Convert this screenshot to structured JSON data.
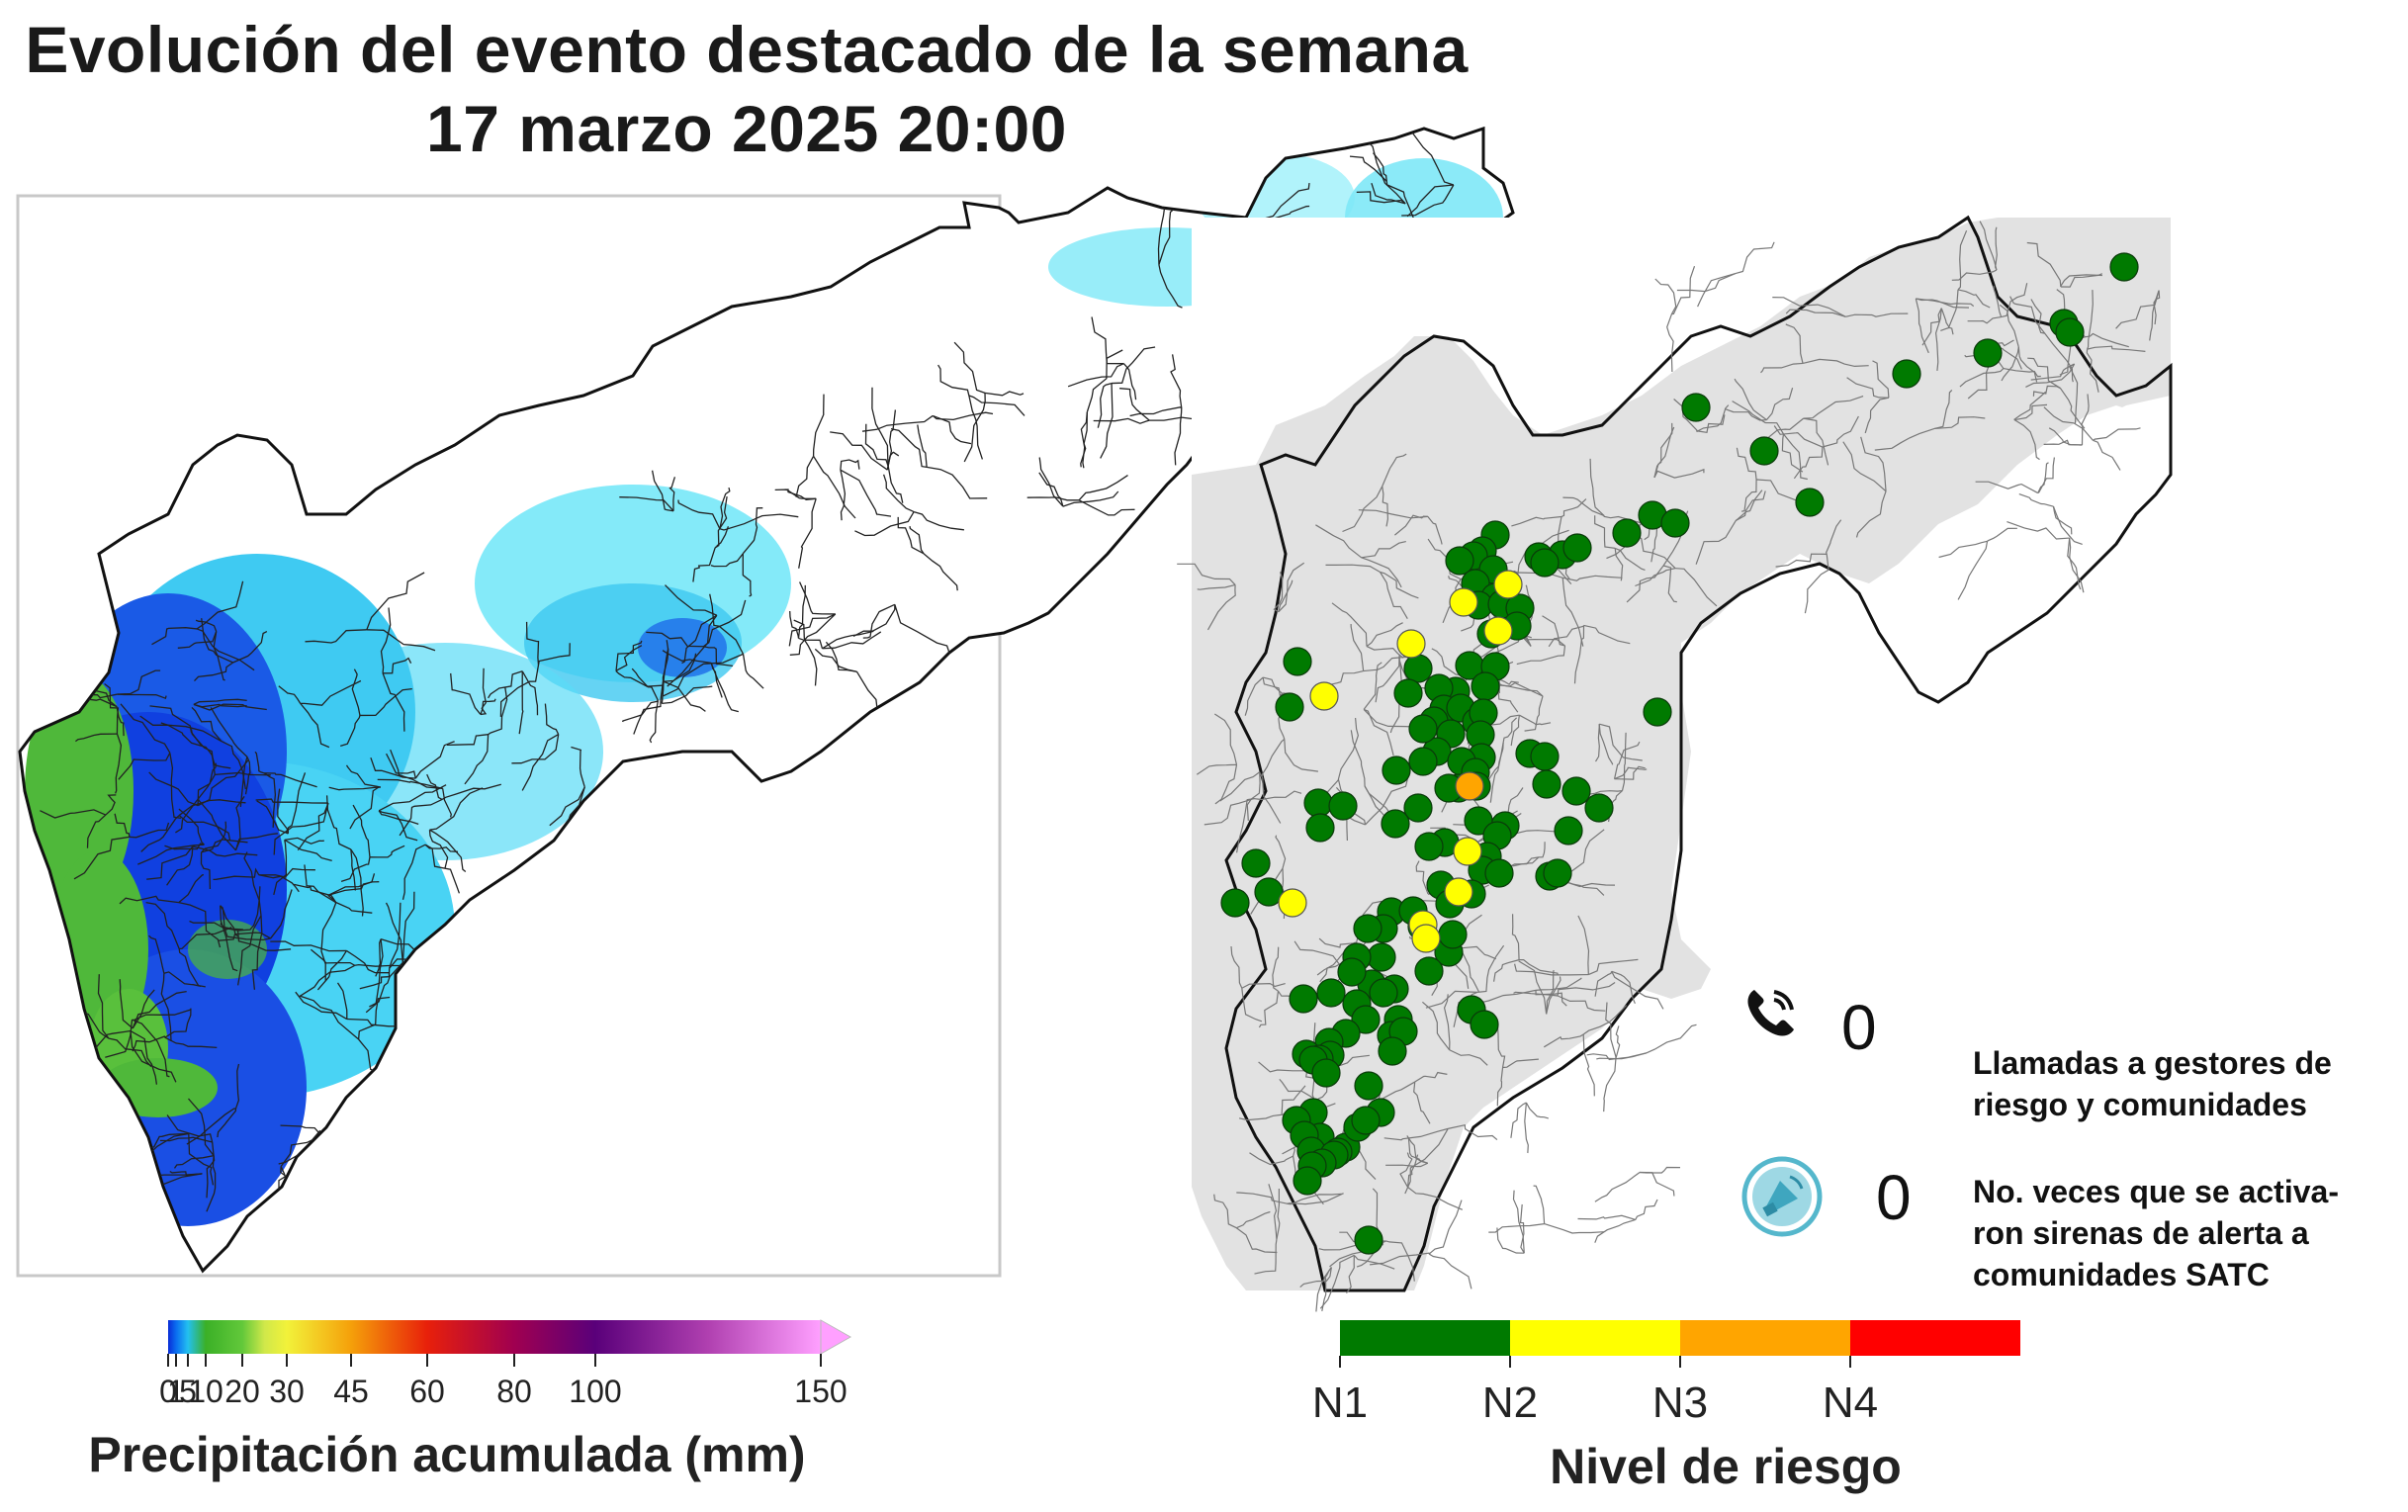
{
  "header": {
    "title": "Evolución del evento destacado de la semana",
    "subtitle": "17 marzo 2025 20:00"
  },
  "precip_legend": {
    "title": "Precipitación acumulada (mm)",
    "ticks": [
      "0",
      "1",
      "5",
      "10",
      "20",
      "30",
      "45",
      "60",
      "80",
      "100",
      "150"
    ],
    "colors": [
      "#0a2dd6",
      "#0a6cf0",
      "#23c0f0",
      "#3bb027",
      "#62c83a",
      "#f2f23a",
      "#f5a00a",
      "#e8200a",
      "#a00050",
      "#5a007a",
      "#b040b0",
      "#ffa0ff"
    ]
  },
  "risk_legend": {
    "title": "Nivel de riesgo",
    "levels": [
      {
        "label": "N1",
        "color": "#007a00"
      },
      {
        "label": "N2",
        "color": "#ffff00"
      },
      {
        "label": "N3",
        "color": "#ffa500"
      },
      {
        "label": "N4",
        "color": "#ff0000"
      }
    ]
  },
  "stats": {
    "calls_count": "0",
    "calls_label_1": "Llamadas a gestores de",
    "calls_label_2": "riesgo y comunidades",
    "sirens_count": "0",
    "sirens_label_1": "No. veces que se activa-",
    "sirens_label_2": "ron sirenas de alerta a",
    "sirens_label_3": "comunidades SATC"
  },
  "icons": {
    "phone": "phone-icon",
    "siren": "siren-icon"
  },
  "stations": {
    "counts": {
      "N1": 113,
      "N2": 10,
      "N3": 1,
      "N4": 0
    }
  }
}
